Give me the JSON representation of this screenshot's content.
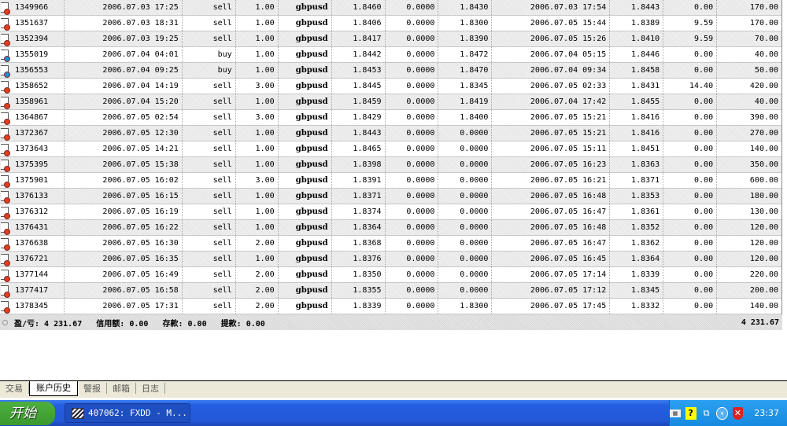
{
  "colors": {
    "sell": "#e0401a",
    "buy": "#1a8de0"
  },
  "trades": [
    {
      "ticket": "1349966",
      "open_time": "2006.07.03 17:25",
      "type": "sell",
      "size": "1.00",
      "symbol": "gbpusd",
      "price": "1.8460",
      "sl": "0.0000",
      "tp": "1.8430",
      "close_time": "2006.07.03 17:54",
      "close_price": "1.8443",
      "swap": "0.00",
      "profit": "170.00"
    },
    {
      "ticket": "1351637",
      "open_time": "2006.07.03 18:31",
      "type": "sell",
      "size": "1.00",
      "symbol": "gbpusd",
      "price": "1.8406",
      "sl": "0.0000",
      "tp": "1.8300",
      "close_time": "2006.07.05 15:44",
      "close_price": "1.8389",
      "swap": "9.59",
      "profit": "170.00"
    },
    {
      "ticket": "1352394",
      "open_time": "2006.07.03 19:25",
      "type": "sell",
      "size": "1.00",
      "symbol": "gbpusd",
      "price": "1.8417",
      "sl": "0.0000",
      "tp": "1.8390",
      "close_time": "2006.07.05 15:26",
      "close_price": "1.8410",
      "swap": "9.59",
      "profit": "70.00"
    },
    {
      "ticket": "1355019",
      "open_time": "2006.07.04 04:01",
      "type": "buy",
      "size": "1.00",
      "symbol": "gbpusd",
      "price": "1.8442",
      "sl": "0.0000",
      "tp": "1.8472",
      "close_time": "2006.07.04 05:15",
      "close_price": "1.8446",
      "swap": "0.00",
      "profit": "40.00"
    },
    {
      "ticket": "1356553",
      "open_time": "2006.07.04 09:25",
      "type": "buy",
      "size": "1.00",
      "symbol": "gbpusd",
      "price": "1.8453",
      "sl": "0.0000",
      "tp": "1.8470",
      "close_time": "2006.07.04 09:34",
      "close_price": "1.8458",
      "swap": "0.00",
      "profit": "50.00"
    },
    {
      "ticket": "1358652",
      "open_time": "2006.07.04 14:19",
      "type": "sell",
      "size": "3.00",
      "symbol": "gbpusd",
      "price": "1.8445",
      "sl": "0.0000",
      "tp": "1.8345",
      "close_time": "2006.07.05 02:33",
      "close_price": "1.8431",
      "swap": "14.40",
      "profit": "420.00"
    },
    {
      "ticket": "1358961",
      "open_time": "2006.07.04 15:20",
      "type": "sell",
      "size": "1.00",
      "symbol": "gbpusd",
      "price": "1.8459",
      "sl": "0.0000",
      "tp": "1.8419",
      "close_time": "2006.07.04 17:42",
      "close_price": "1.8455",
      "swap": "0.00",
      "profit": "40.00"
    },
    {
      "ticket": "1364867",
      "open_time": "2006.07.05 02:54",
      "type": "sell",
      "size": "3.00",
      "symbol": "gbpusd",
      "price": "1.8429",
      "sl": "0.0000",
      "tp": "1.8400",
      "close_time": "2006.07.05 15:21",
      "close_price": "1.8416",
      "swap": "0.00",
      "profit": "390.00"
    },
    {
      "ticket": "1372367",
      "open_time": "2006.07.05 12:30",
      "type": "sell",
      "size": "1.00",
      "symbol": "gbpusd",
      "price": "1.8443",
      "sl": "0.0000",
      "tp": "0.0000",
      "close_time": "2006.07.05 15:21",
      "close_price": "1.8416",
      "swap": "0.00",
      "profit": "270.00"
    },
    {
      "ticket": "1373643",
      "open_time": "2006.07.05 14:21",
      "type": "sell",
      "size": "1.00",
      "symbol": "gbpusd",
      "price": "1.8465",
      "sl": "0.0000",
      "tp": "0.0000",
      "close_time": "2006.07.05 15:11",
      "close_price": "1.8451",
      "swap": "0.00",
      "profit": "140.00"
    },
    {
      "ticket": "1375395",
      "open_time": "2006.07.05 15:38",
      "type": "sell",
      "size": "1.00",
      "symbol": "gbpusd",
      "price": "1.8398",
      "sl": "0.0000",
      "tp": "0.0000",
      "close_time": "2006.07.05 16:23",
      "close_price": "1.8363",
      "swap": "0.00",
      "profit": "350.00"
    },
    {
      "ticket": "1375901",
      "open_time": "2006.07.05 16:02",
      "type": "sell",
      "size": "3.00",
      "symbol": "gbpusd",
      "price": "1.8391",
      "sl": "0.0000",
      "tp": "0.0000",
      "close_time": "2006.07.05 16:21",
      "close_price": "1.8371",
      "swap": "0.00",
      "profit": "600.00"
    },
    {
      "ticket": "1376133",
      "open_time": "2006.07.05 16:15",
      "type": "sell",
      "size": "1.00",
      "symbol": "gbpusd",
      "price": "1.8371",
      "sl": "0.0000",
      "tp": "0.0000",
      "close_time": "2006.07.05 16:48",
      "close_price": "1.8353",
      "swap": "0.00",
      "profit": "180.00"
    },
    {
      "ticket": "1376312",
      "open_time": "2006.07.05 16:19",
      "type": "sell",
      "size": "1.00",
      "symbol": "gbpusd",
      "price": "1.8374",
      "sl": "0.0000",
      "tp": "0.0000",
      "close_time": "2006.07.05 16:47",
      "close_price": "1.8361",
      "swap": "0.00",
      "profit": "130.00"
    },
    {
      "ticket": "1376431",
      "open_time": "2006.07.05 16:22",
      "type": "sell",
      "size": "1.00",
      "symbol": "gbpusd",
      "price": "1.8364",
      "sl": "0.0000",
      "tp": "0.0000",
      "close_time": "2006.07.05 16:48",
      "close_price": "1.8352",
      "swap": "0.00",
      "profit": "120.00"
    },
    {
      "ticket": "1376638",
      "open_time": "2006.07.05 16:30",
      "type": "sell",
      "size": "2.00",
      "symbol": "gbpusd",
      "price": "1.8368",
      "sl": "0.0000",
      "tp": "0.0000",
      "close_time": "2006.07.05 16:47",
      "close_price": "1.8362",
      "swap": "0.00",
      "profit": "120.00"
    },
    {
      "ticket": "1376721",
      "open_time": "2006.07.05 16:35",
      "type": "sell",
      "size": "1.00",
      "symbol": "gbpusd",
      "price": "1.8376",
      "sl": "0.0000",
      "tp": "0.0000",
      "close_time": "2006.07.05 16:45",
      "close_price": "1.8364",
      "swap": "0.00",
      "profit": "120.00"
    },
    {
      "ticket": "1377144",
      "open_time": "2006.07.05 16:49",
      "type": "sell",
      "size": "2.00",
      "symbol": "gbpusd",
      "price": "1.8350",
      "sl": "0.0000",
      "tp": "0.0000",
      "close_time": "2006.07.05 17:14",
      "close_price": "1.8339",
      "swap": "0.00",
      "profit": "220.00"
    },
    {
      "ticket": "1377417",
      "open_time": "2006.07.05 16:58",
      "type": "sell",
      "size": "2.00",
      "symbol": "gbpusd",
      "price": "1.8355",
      "sl": "0.0000",
      "tp": "0.0000",
      "close_time": "2006.07.05 17:12",
      "close_price": "1.8345",
      "swap": "0.00",
      "profit": "200.00"
    },
    {
      "ticket": "1378345",
      "open_time": "2006.07.05 17:31",
      "type": "sell",
      "size": "2.00",
      "symbol": "gbpusd",
      "price": "1.8339",
      "sl": "0.0000",
      "tp": "1.8300",
      "close_time": "2006.07.05 17:45",
      "close_price": "1.8332",
      "swap": "0.00",
      "profit": "140.00"
    }
  ],
  "summary": {
    "text": "盈/亏: 4 231.67   信用额: 0.00   存款: 0.00   提款: 0.00",
    "total": "4 231.67"
  },
  "tabs": [
    {
      "label": "交易"
    },
    {
      "label": "账户历史",
      "active": true
    },
    {
      "label": "警报"
    },
    {
      "label": "邮箱"
    },
    {
      "label": "日志"
    }
  ],
  "taskbar": {
    "start": "开始",
    "task": "407062: FXDD - M...",
    "clock": "23:37",
    "tray_icons": [
      "keyboard-icon",
      "help-icon",
      "network-icon",
      "show-hidden-icon",
      "security-shield-icon"
    ]
  }
}
